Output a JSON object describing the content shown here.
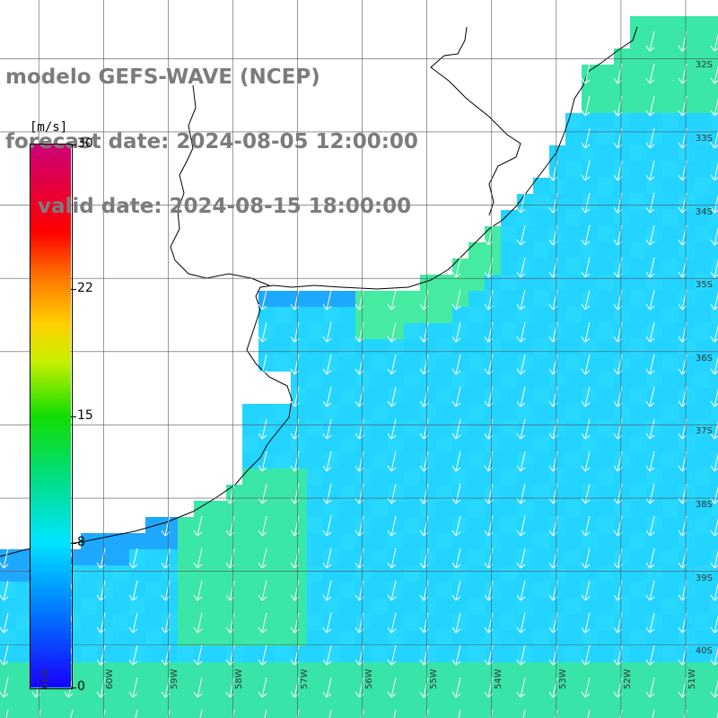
{
  "header": {
    "line1": "modelo GEFS-WAVE (NCEP)",
    "line2": "forecast date: 2024-08-05 12:00:00",
    "line3": "valid date: 2024-08-15 18:00:00"
  },
  "colorbar": {
    "unit": "[m/s]",
    "ticks": [
      "30",
      "22",
      "15",
      "8",
      "0"
    ],
    "tick_values": [
      30,
      22,
      15,
      8,
      0
    ],
    "range": [
      0,
      30
    ],
    "colors": [
      "#1a00ff",
      "#0099ff",
      "#00e5ff",
      "#00cc66",
      "#11dd00",
      "#d8f000",
      "#ffd000",
      "#ff7000",
      "#ff0000",
      "#cc0077"
    ]
  },
  "map": {
    "lat_labels": [
      "32S",
      "33S",
      "34S",
      "35S",
      "36S",
      "37S",
      "38S",
      "39S",
      "40S"
    ],
    "lat_values": [
      -32,
      -33,
      -34,
      -35,
      -36,
      -37,
      -38,
      -39,
      -40
    ],
    "lon_labels": [
      "61W",
      "60W",
      "59W",
      "58W",
      "57W",
      "56W",
      "55W",
      "54W",
      "53W",
      "52W",
      "51W"
    ],
    "lon_values": [
      -61,
      -60,
      -59,
      -58,
      -57,
      -56,
      -55,
      -54,
      -53,
      -52,
      -51
    ],
    "land_color": "#ffffff",
    "ocean_color": "#22ccff",
    "wind_arrow_color": "#ffffff"
  }
}
